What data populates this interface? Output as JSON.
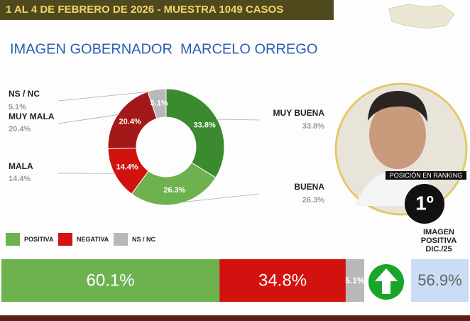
{
  "header": {
    "title": "1 AL 4 DE FEBRERO DE 2026 - MUESTRA 1049 CASOS"
  },
  "chart_data": [
    {
      "type": "donut",
      "title": "IMAGEN GOBERNADOR  MARCELO ORREGO",
      "categories": [
        "MUY BUENA",
        "BUENA",
        "MALA",
        "MUY MALA",
        "NS / NC"
      ],
      "values": [
        33.8,
        26.3,
        14.4,
        20.4,
        5.1
      ],
      "value_labels": [
        "33.8%",
        "26.3%",
        "14.4%",
        "20.4%",
        "5.1%"
      ],
      "colors": [
        "#3b8a2f",
        "#6db24e",
        "#d2120f",
        "#a3191a",
        "#b8b8b8"
      ]
    },
    {
      "type": "bar",
      "series": [
        {
          "name": "POSITIVA",
          "color": "#6db24e",
          "values": [
            60.1
          ],
          "value_labels": [
            "60.1%"
          ]
        },
        {
          "name": "NEGATIVA",
          "color": "#d2120f",
          "values": [
            34.8
          ],
          "value_labels": [
            "34.8%"
          ]
        },
        {
          "name": "NS / NC",
          "color": "#b8b8b8",
          "values": [
            5.1
          ],
          "value_labels": [
            "5.1%"
          ]
        }
      ],
      "xlim": [
        0,
        100
      ]
    }
  ],
  "ranking": {
    "label": "POSICIÓN EN RANKING",
    "position": "1º"
  },
  "previous": {
    "lines": [
      "IMAGEN",
      "POSITIVA",
      "DIC./25"
    ],
    "value": 56.9,
    "value_label": "56.9%"
  }
}
